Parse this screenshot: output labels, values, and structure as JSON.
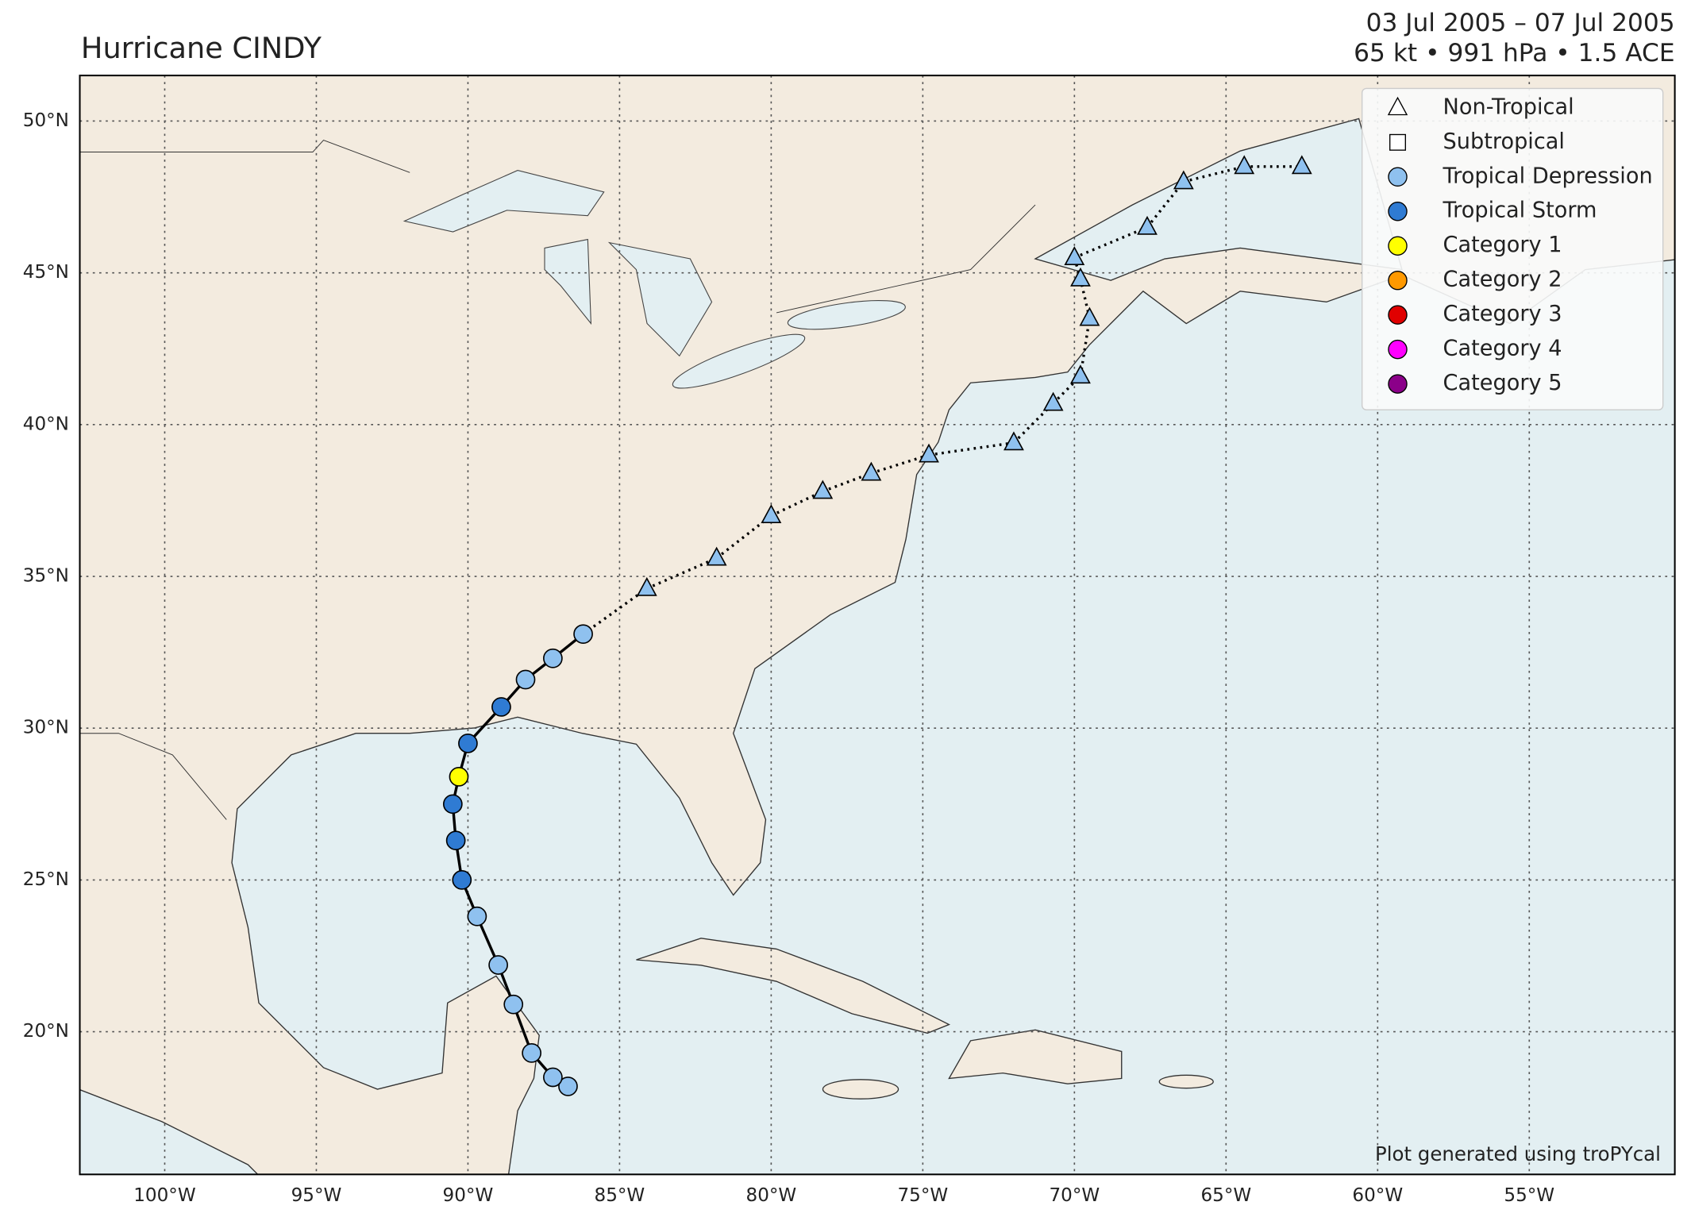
{
  "chart_data": {
    "type": "track",
    "title": "Hurricane CINDY",
    "date_range": "03 Jul 2005 – 07 Jul 2005",
    "stats": "65 kt • 991 hPa • 1.5 ACE",
    "note": "Plot generated using troPYcal",
    "xlim": [
      -102.8,
      -50.2
    ],
    "ylim": [
      15.3,
      51.5
    ],
    "xticks": [
      {
        "value": -100,
        "label": "100°W"
      },
      {
        "value": -95,
        "label": "95°W"
      },
      {
        "value": -90,
        "label": "90°W"
      },
      {
        "value": -85,
        "label": "85°W"
      },
      {
        "value": -80,
        "label": "80°W"
      },
      {
        "value": -75,
        "label": "75°W"
      },
      {
        "value": -70,
        "label": "70°W"
      },
      {
        "value": -65,
        "label": "65°W"
      },
      {
        "value": -60,
        "label": "60°W"
      },
      {
        "value": -55,
        "label": "55°W"
      }
    ],
    "yticks": [
      {
        "value": 20,
        "label": "20°N"
      },
      {
        "value": 25,
        "label": "25°N"
      },
      {
        "value": 30,
        "label": "30°N"
      },
      {
        "value": 35,
        "label": "35°N"
      },
      {
        "value": 40,
        "label": "40°N"
      },
      {
        "value": 45,
        "label": "45°N"
      },
      {
        "value": 50,
        "label": "50°N"
      }
    ],
    "grid": true,
    "legend_loc": "upper right",
    "legend": [
      {
        "name": "Non-Tropical",
        "marker": "triangle",
        "color": "#ffffff"
      },
      {
        "name": "Subtropical",
        "marker": "square",
        "color": "#ffffff"
      },
      {
        "name": "Tropical Depression",
        "marker": "circle",
        "color": "#8fc1ef"
      },
      {
        "name": "Tropical Storm",
        "marker": "circle",
        "color": "#2f7bd3"
      },
      {
        "name": "Category 1",
        "marker": "circle",
        "color": "#ffff00"
      },
      {
        "name": "Category 2",
        "marker": "circle",
        "color": "#ff9900"
      },
      {
        "name": "Category 3",
        "marker": "circle",
        "color": "#e00000"
      },
      {
        "name": "Category 4",
        "marker": "circle",
        "color": "#ff00ff"
      },
      {
        "name": "Category 5",
        "marker": "circle",
        "color": "#8b0089"
      }
    ],
    "track": {
      "lon": [
        -86.7,
        -87.2,
        -87.9,
        -88.5,
        -89.0,
        -89.7,
        -90.2,
        -90.4,
        -90.5,
        -90.3,
        -90.0,
        -88.9,
        -88.1,
        -87.2,
        -86.2,
        -84.1,
        -81.8,
        -80.0,
        -78.3,
        -76.7,
        -74.8,
        -72.0,
        -70.7,
        -69.8,
        -69.5,
        -69.8,
        -70.0,
        -67.6,
        -66.4,
        -64.4,
        -62.5
      ],
      "lat": [
        18.2,
        18.5,
        19.3,
        20.9,
        22.2,
        23.8,
        25.0,
        26.3,
        27.5,
        28.4,
        29.5,
        30.7,
        31.6,
        32.3,
        33.1,
        34.6,
        35.6,
        37.0,
        37.8,
        38.4,
        39.0,
        39.4,
        40.7,
        41.6,
        43.5,
        44.8,
        45.5,
        46.5,
        48.0,
        48.5,
        48.5
      ],
      "marker": [
        "circle",
        "circle",
        "circle",
        "circle",
        "circle",
        "circle",
        "circle",
        "circle",
        "circle",
        "circle",
        "circle",
        "circle",
        "circle",
        "circle",
        "circle",
        "triangle",
        "triangle",
        "triangle",
        "triangle",
        "triangle",
        "triangle",
        "triangle",
        "triangle",
        "triangle",
        "triangle",
        "triangle",
        "triangle",
        "triangle",
        "triangle",
        "triangle",
        "triangle"
      ],
      "color": [
        "#8fc1ef",
        "#8fc1ef",
        "#8fc1ef",
        "#8fc1ef",
        "#8fc1ef",
        "#8fc1ef",
        "#2f7bd3",
        "#2f7bd3",
        "#2f7bd3",
        "#ffff00",
        "#2f7bd3",
        "#2f7bd3",
        "#8fc1ef",
        "#8fc1ef",
        "#8fc1ef",
        "#8fc1ef",
        "#8fc1ef",
        "#8fc1ef",
        "#8fc1ef",
        "#8fc1ef",
        "#8fc1ef",
        "#8fc1ef",
        "#8fc1ef",
        "#8fc1ef",
        "#8fc1ef",
        "#8fc1ef",
        "#8fc1ef",
        "#8fc1ef",
        "#8fc1ef",
        "#8fc1ef",
        "#8fc1ef"
      ]
    }
  }
}
